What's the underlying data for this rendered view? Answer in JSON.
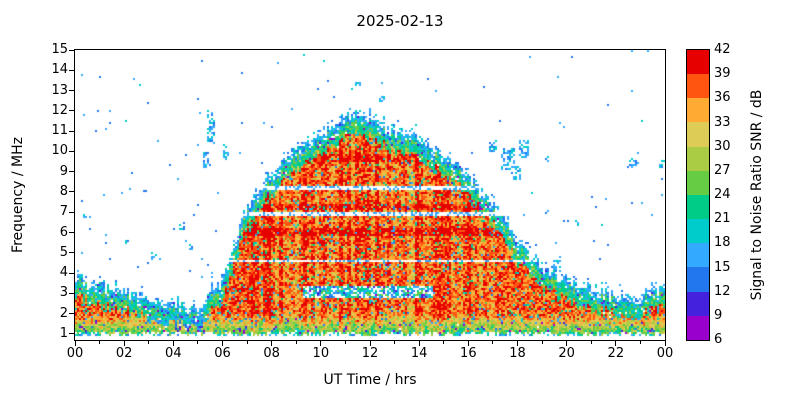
{
  "chart_data": {
    "type": "heatmap",
    "title": "2025-02-13",
    "xlabel": "UT Time / hrs",
    "ylabel": "Frequency / MHz",
    "colorbar_label": "Signal to Noise Ratio SNR / dB",
    "x_range_hours": [
      0,
      24
    ],
    "x_tick_hours": [
      0,
      2,
      4,
      6,
      8,
      10,
      12,
      14,
      16,
      18,
      20,
      22,
      24
    ],
    "x_tick_labels": [
      "00",
      "02",
      "04",
      "06",
      "08",
      "10",
      "12",
      "14",
      "16",
      "18",
      "20",
      "22",
      "00"
    ],
    "y_range_mhz": [
      0.7,
      15
    ],
    "y_tick_values": [
      1,
      2,
      3,
      4,
      5,
      6,
      7,
      8,
      9,
      10,
      11,
      12,
      13,
      14,
      15
    ],
    "snr_range_db": [
      6,
      42
    ],
    "colorbar_tick_values": [
      6,
      9,
      12,
      15,
      18,
      21,
      24,
      27,
      30,
      33,
      36,
      39,
      42
    ],
    "colormap_band_colors": [
      "#9900cc",
      "#4422dd",
      "#2277ee",
      "#33aaff",
      "#00cccc",
      "#00cc88",
      "#66cc44",
      "#aacc44",
      "#ddcc55",
      "#ffaa33",
      "#ff5511",
      "#e60000"
    ],
    "envelope_max_freq_mhz": {
      "hours": [
        0,
        1,
        2,
        3,
        4,
        5,
        6,
        7,
        8,
        9,
        10,
        11,
        12,
        13,
        14,
        15,
        16,
        17,
        18,
        19,
        20,
        21,
        22,
        23,
        24
      ],
      "values": [
        3.8,
        3.3,
        3.0,
        2.7,
        2.4,
        2.1,
        3.6,
        7.2,
        8.8,
        9.9,
        10.8,
        11.5,
        11.6,
        10.9,
        10.5,
        9.8,
        8.8,
        7.3,
        5.6,
        4.2,
        3.6,
        3.1,
        2.9,
        2.9,
        3.1
      ]
    },
    "quiet_gaps_mhz": [
      {
        "center": 4.6,
        "half_width": 0.08
      },
      {
        "center": 6.9,
        "half_width": 0.1
      },
      {
        "center": 8.15,
        "half_width": 0.1
      }
    ],
    "strong_bands_mhz": [
      {
        "center": 6.05,
        "half_width": 0.2
      },
      {
        "center": 7.3,
        "half_width": 0.15
      },
      {
        "center": 9.7,
        "half_width": 0.2
      }
    ],
    "ef_valley": {
      "t_start": 9.3,
      "t_end": 14.6,
      "f_low": 2.75,
      "f_high": 3.35
    },
    "sporadic_patches": [
      {
        "t": 5.55,
        "f": 11.2,
        "rt": 0.18,
        "rf": 0.85
      },
      {
        "t": 5.35,
        "f": 9.6,
        "rt": 0.12,
        "rf": 0.45
      },
      {
        "t": 6.15,
        "f": 9.9,
        "rt": 0.15,
        "rf": 0.5
      },
      {
        "t": 4.35,
        "f": 6.3,
        "rt": 0.1,
        "rf": 0.18
      },
      {
        "t": 4.7,
        "f": 5.3,
        "rt": 0.1,
        "rf": 0.18
      },
      {
        "t": 3.2,
        "f": 4.8,
        "rt": 0.12,
        "rf": 0.2
      },
      {
        "t": 0.4,
        "f": 6.9,
        "rt": 0.08,
        "rf": 0.15
      },
      {
        "t": 2.1,
        "f": 5.6,
        "rt": 0.08,
        "rf": 0.15
      },
      {
        "t": 11.5,
        "f": 13.4,
        "rt": 0.1,
        "rf": 0.15
      },
      {
        "t": 14.4,
        "f": 13.5,
        "rt": 0.1,
        "rf": 0.15
      },
      {
        "t": 12.5,
        "f": 12.6,
        "rt": 0.12,
        "rf": 0.18
      },
      {
        "t": 17.0,
        "f": 10.3,
        "rt": 0.15,
        "rf": 0.3
      },
      {
        "t": 17.6,
        "f": 9.6,
        "rt": 0.3,
        "rf": 0.55
      },
      {
        "t": 18.3,
        "f": 10.1,
        "rt": 0.2,
        "rf": 0.45
      },
      {
        "t": 18.0,
        "f": 8.9,
        "rt": 0.18,
        "rf": 0.35
      },
      {
        "t": 19.2,
        "f": 9.7,
        "rt": 0.12,
        "rf": 0.2
      },
      {
        "t": 22.75,
        "f": 9.45,
        "rt": 0.22,
        "rf": 0.25
      },
      {
        "t": 23.9,
        "f": 9.4,
        "rt": 0.12,
        "rf": 0.18
      },
      {
        "t": 20.4,
        "f": 6.5,
        "rt": 0.1,
        "rf": 0.15
      },
      {
        "t": 19.6,
        "f": 4.4,
        "rt": 0.15,
        "rf": 0.3
      }
    ]
  }
}
